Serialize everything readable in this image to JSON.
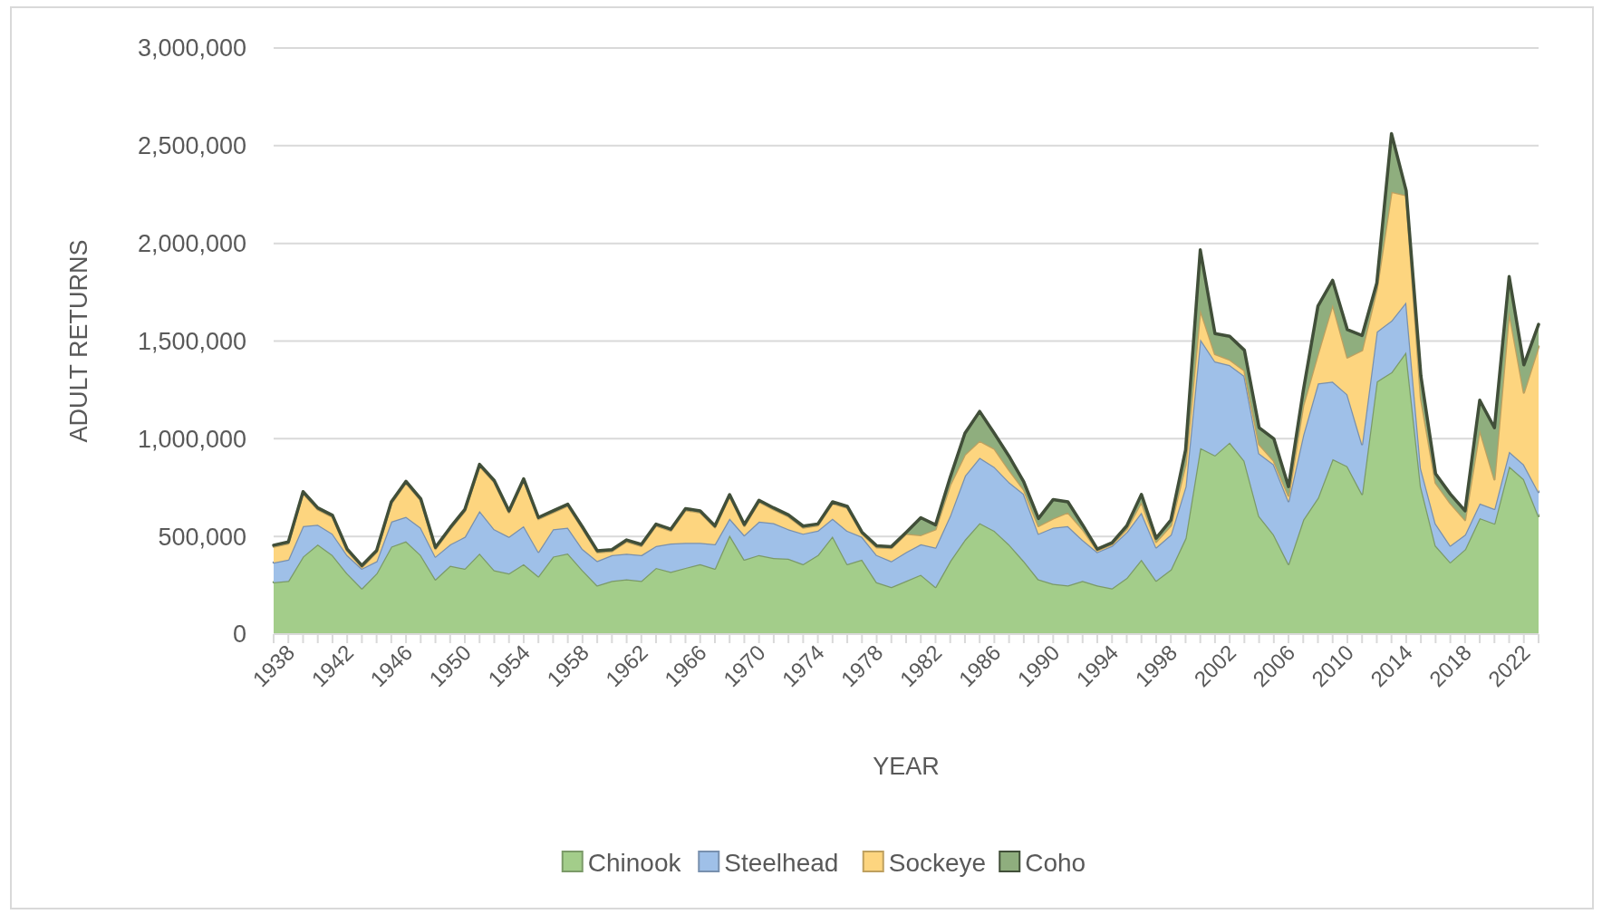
{
  "chart_data": {
    "type": "area",
    "stacked": true,
    "xlabel": "YEAR",
    "ylabel": "ADULT RETURNS",
    "categories": [
      "1938",
      null,
      null,
      null,
      "1942",
      null,
      null,
      null,
      "1946",
      null,
      null,
      null,
      "1950",
      null,
      null,
      null,
      "1954",
      null,
      null,
      null,
      "1958",
      null,
      null,
      null,
      "1962",
      null,
      null,
      null,
      "1966",
      null,
      null,
      null,
      "1970",
      null,
      null,
      null,
      "1974",
      null,
      null,
      null,
      "1978",
      null,
      null,
      null,
      "1982",
      null,
      null,
      null,
      "1986",
      null,
      null,
      null,
      "1990",
      null,
      null,
      null,
      "1994",
      null,
      null,
      null,
      "1998",
      null,
      null,
      null,
      "2002",
      null,
      null,
      null,
      "2006",
      null,
      null,
      null,
      "2010",
      null,
      null,
      null,
      "2014",
      null,
      null,
      null,
      "2018",
      null,
      null,
      null,
      "2022",
      null,
      null
    ],
    "series": [
      {
        "name": "Chinook",
        "color": "#a3cd8a",
        "values": [
          265000,
          272000,
          397000,
          459000,
          405000,
          311000,
          234000,
          311000,
          448000,
          475000,
          405000,
          280000,
          350000,
          335000,
          413000,
          327000,
          311000,
          358000,
          296000,
          397000,
          413000,
          327000,
          249000,
          272000,
          280000,
          272000,
          339000,
          319000,
          339000,
          358000,
          335000,
          506000,
          381000,
          405000,
          389000,
          386000,
          358000,
          405000,
          501000,
          358000,
          381000,
          265000,
          241000,
          272000,
          304000,
          241000,
          374000,
          483000,
          568000,
          529000,
          459000,
          374000,
          280000,
          257000,
          249000,
          272000,
          249000,
          234000,
          288000,
          381000,
          274000,
          330000,
          491000,
          953000,
          915000,
          981000,
          887000,
          604000,
          509000,
          359000,
          585000,
          698000,
          896000,
          859000,
          717000,
          1293000,
          1340000,
          1444000,
          755000,
          453000,
          368000,
          434000,
          594000,
          566000,
          859000,
          793000,
          604000
        ]
      },
      {
        "name": "Steelhead",
        "color": "#9fc0e8",
        "values": [
          101000,
          109000,
          156000,
          101000,
          109000,
          93000,
          101000,
          62000,
          128000,
          125000,
          140000,
          117000,
          109000,
          163000,
          218000,
          210000,
          187000,
          195000,
          125000,
          140000,
          132000,
          109000,
          125000,
          132000,
          132000,
          132000,
          112000,
          145000,
          128000,
          109000,
          125000,
          86000,
          125000,
          171000,
          179000,
          151000,
          156000,
          125000,
          90000,
          171000,
          117000,
          140000,
          132000,
          148000,
          156000,
          202000,
          234000,
          327000,
          335000,
          327000,
          319000,
          343000,
          234000,
          288000,
          304000,
          210000,
          171000,
          218000,
          234000,
          241000,
          170000,
          179000,
          264000,
          557000,
          481000,
          396000,
          434000,
          321000,
          359000,
          321000,
          434000,
          585000,
          396000,
          368000,
          255000,
          255000,
          264000,
          255000,
          94000,
          113000,
          85000,
          75000,
          75000,
          75000,
          75000,
          75000,
          123000
        ]
      },
      {
        "name": "Sockeye",
        "color": "#fdd57f",
        "values": [
          81000,
          83000,
          168000,
          78000,
          86000,
          23000,
          8000,
          47000,
          93000,
          174000,
          140000,
          39000,
          78000,
          132000,
          230000,
          241000,
          125000,
          234000,
          168000,
          86000,
          112000,
          104000,
          45000,
          20000,
          62000,
          47000,
          104000,
          65000,
          167000,
          156000,
          86000,
          114000,
          47000,
          101000,
          70000,
          65000,
          31000,
          26000,
          78000,
          117000,
          16000,
          39000,
          67000,
          93000,
          47000,
          93000,
          156000,
          109000,
          86000,
          93000,
          62000,
          23000,
          39000,
          47000,
          70000,
          54000,
          9000,
          8000,
          16000,
          54000,
          28000,
          47000,
          113000,
          151000,
          38000,
          28000,
          28000,
          47000,
          19000,
          28000,
          151000,
          151000,
          396000,
          189000,
          481000,
          217000,
          660000,
          547000,
          359000,
          208000,
          217000,
          75000,
          377000,
          151000,
          717000,
          368000,
          745000
        ]
      },
      {
        "name": "Coho",
        "color": "#8fae7e",
        "values": [
          8000,
          8000,
          8000,
          8000,
          8000,
          8000,
          8000,
          8000,
          8000,
          8000,
          8000,
          8000,
          8000,
          8000,
          8000,
          8000,
          8000,
          8000,
          8000,
          8000,
          8000,
          8000,
          8000,
          8000,
          8000,
          8000,
          8000,
          8000,
          8000,
          8000,
          8000,
          8000,
          8000,
          8000,
          8000,
          8000,
          8000,
          8000,
          8000,
          8000,
          8000,
          8000,
          8000,
          8000,
          89000,
          23000,
          39000,
          109000,
          151000,
          78000,
          70000,
          39000,
          39000,
          97000,
          54000,
          23000,
          6000,
          8000,
          16000,
          39000,
          19000,
          28000,
          75000,
          306000,
          104000,
          119000,
          104000,
          85000,
          113000,
          47000,
          75000,
          245000,
          123000,
          142000,
          75000,
          32000,
          298000,
          23000,
          113000,
          47000,
          47000,
          47000,
          151000,
          264000,
          179000,
          142000,
          113000
        ]
      }
    ],
    "ylim": [
      0,
      3000000
    ],
    "yticks": [
      {
        "value": 0,
        "label": "0"
      },
      {
        "value": 500000,
        "label": "500,000"
      },
      {
        "value": 1000000,
        "label": "1,000,000"
      },
      {
        "value": 1500000,
        "label": "1,500,000"
      },
      {
        "value": 2000000,
        "label": "2,000,000"
      },
      {
        "value": 2500000,
        "label": "2,500,000"
      },
      {
        "value": 3000000,
        "label": "3,000,000"
      }
    ],
    "grid": "y",
    "legend": "bottom"
  }
}
